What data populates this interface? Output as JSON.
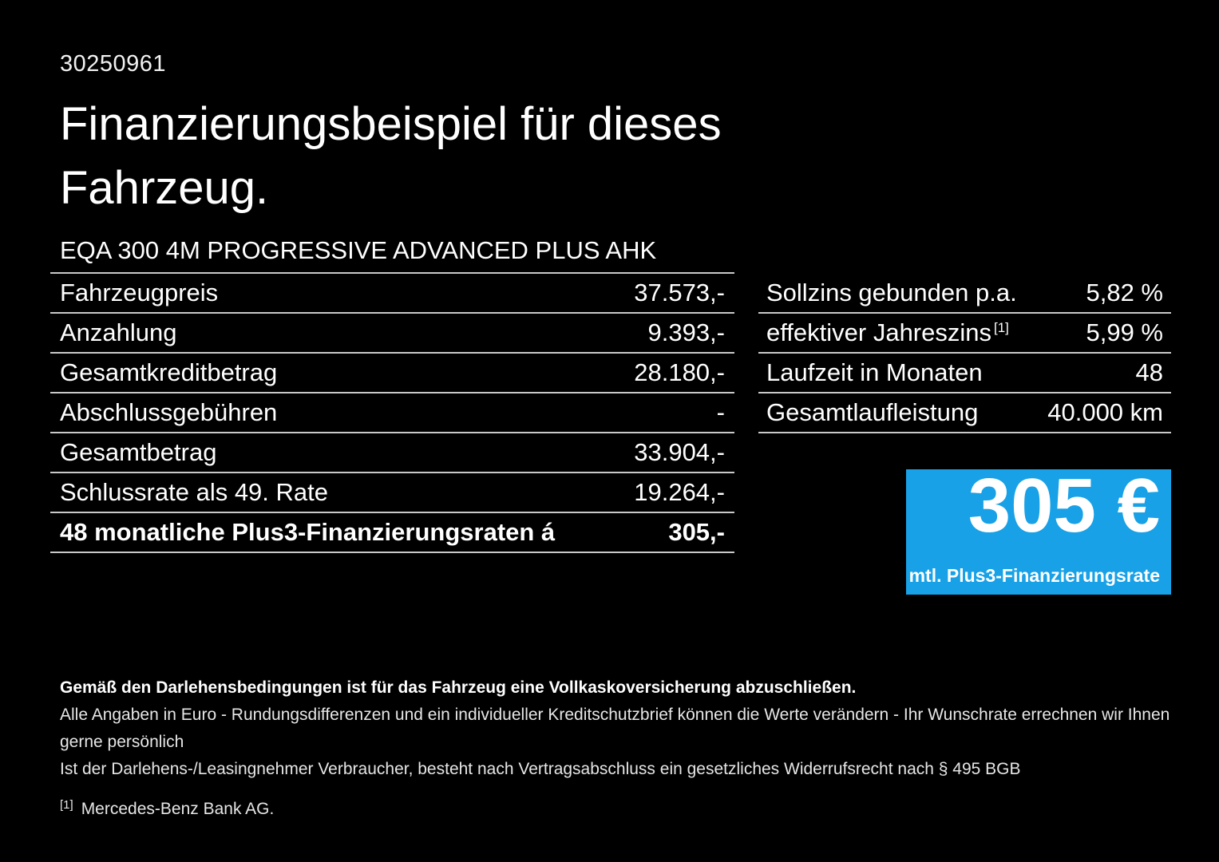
{
  "page": {
    "ref_number": "30250961",
    "title_line1": "Finanzierungsbeispiel für dieses",
    "title_line2": "Fahrzeug.",
    "background_color": "#000000",
    "accent_blue": "#18A1E6"
  },
  "vehicle": {
    "model": "EQA 300 4M PROGRESSIVE ADVANCED PLUS AHK"
  },
  "finance_table": {
    "rows": [
      {
        "label": "Fahrzeugpreis",
        "value": "37.573,-"
      },
      {
        "label": "Anzahlung",
        "value": "9.393,-"
      },
      {
        "label": "Gesamtkreditbetrag",
        "value": "28.180,-"
      },
      {
        "label": "Abschlussgebühren",
        "value": "-"
      },
      {
        "label": "Gesamtbetrag",
        "value": "33.904,-"
      },
      {
        "label": "Schlussrate als 49. Rate",
        "value": "19.264,-"
      },
      {
        "label": "48 monatliche Plus3-Finanzierungsraten á",
        "value": "305,-"
      }
    ]
  },
  "conditions_table": {
    "rows": [
      {
        "label": "Sollzins gebunden p.a.",
        "value": "5,82 %"
      },
      {
        "label": "effektiver Jahreszins",
        "footnote_marker": "[1]",
        "value": "5,99 %"
      },
      {
        "label": "Laufzeit in Monaten",
        "value": "48"
      },
      {
        "label": "Gesamtlaufleistung",
        "value": "40.000 km"
      }
    ]
  },
  "rate_box": {
    "amount": "305 €",
    "caption": "mtl. Plus3-Finanzierungsrate"
  },
  "footer": {
    "line1": "Gemäß den Darlehensbedingungen ist für das Fahrzeug eine Vollkaskoversicherung abzuschließen.",
    "line2": "Alle Angaben in Euro - Rundungsdifferenzen und ein individueller Kreditschutzbrief können die Werte verändern - Ihr Wunschrate errechnen wir Ihnen gerne persönlich",
    "line3": "Ist der Darlehens-/Leasingnehmer Verbraucher, besteht nach Vertragsabschluss ein gesetzliches Widerrufsrecht nach § 495 BGB",
    "footnote_marker": "[1]",
    "footnote_text": "Mercedes-Benz Bank AG."
  }
}
